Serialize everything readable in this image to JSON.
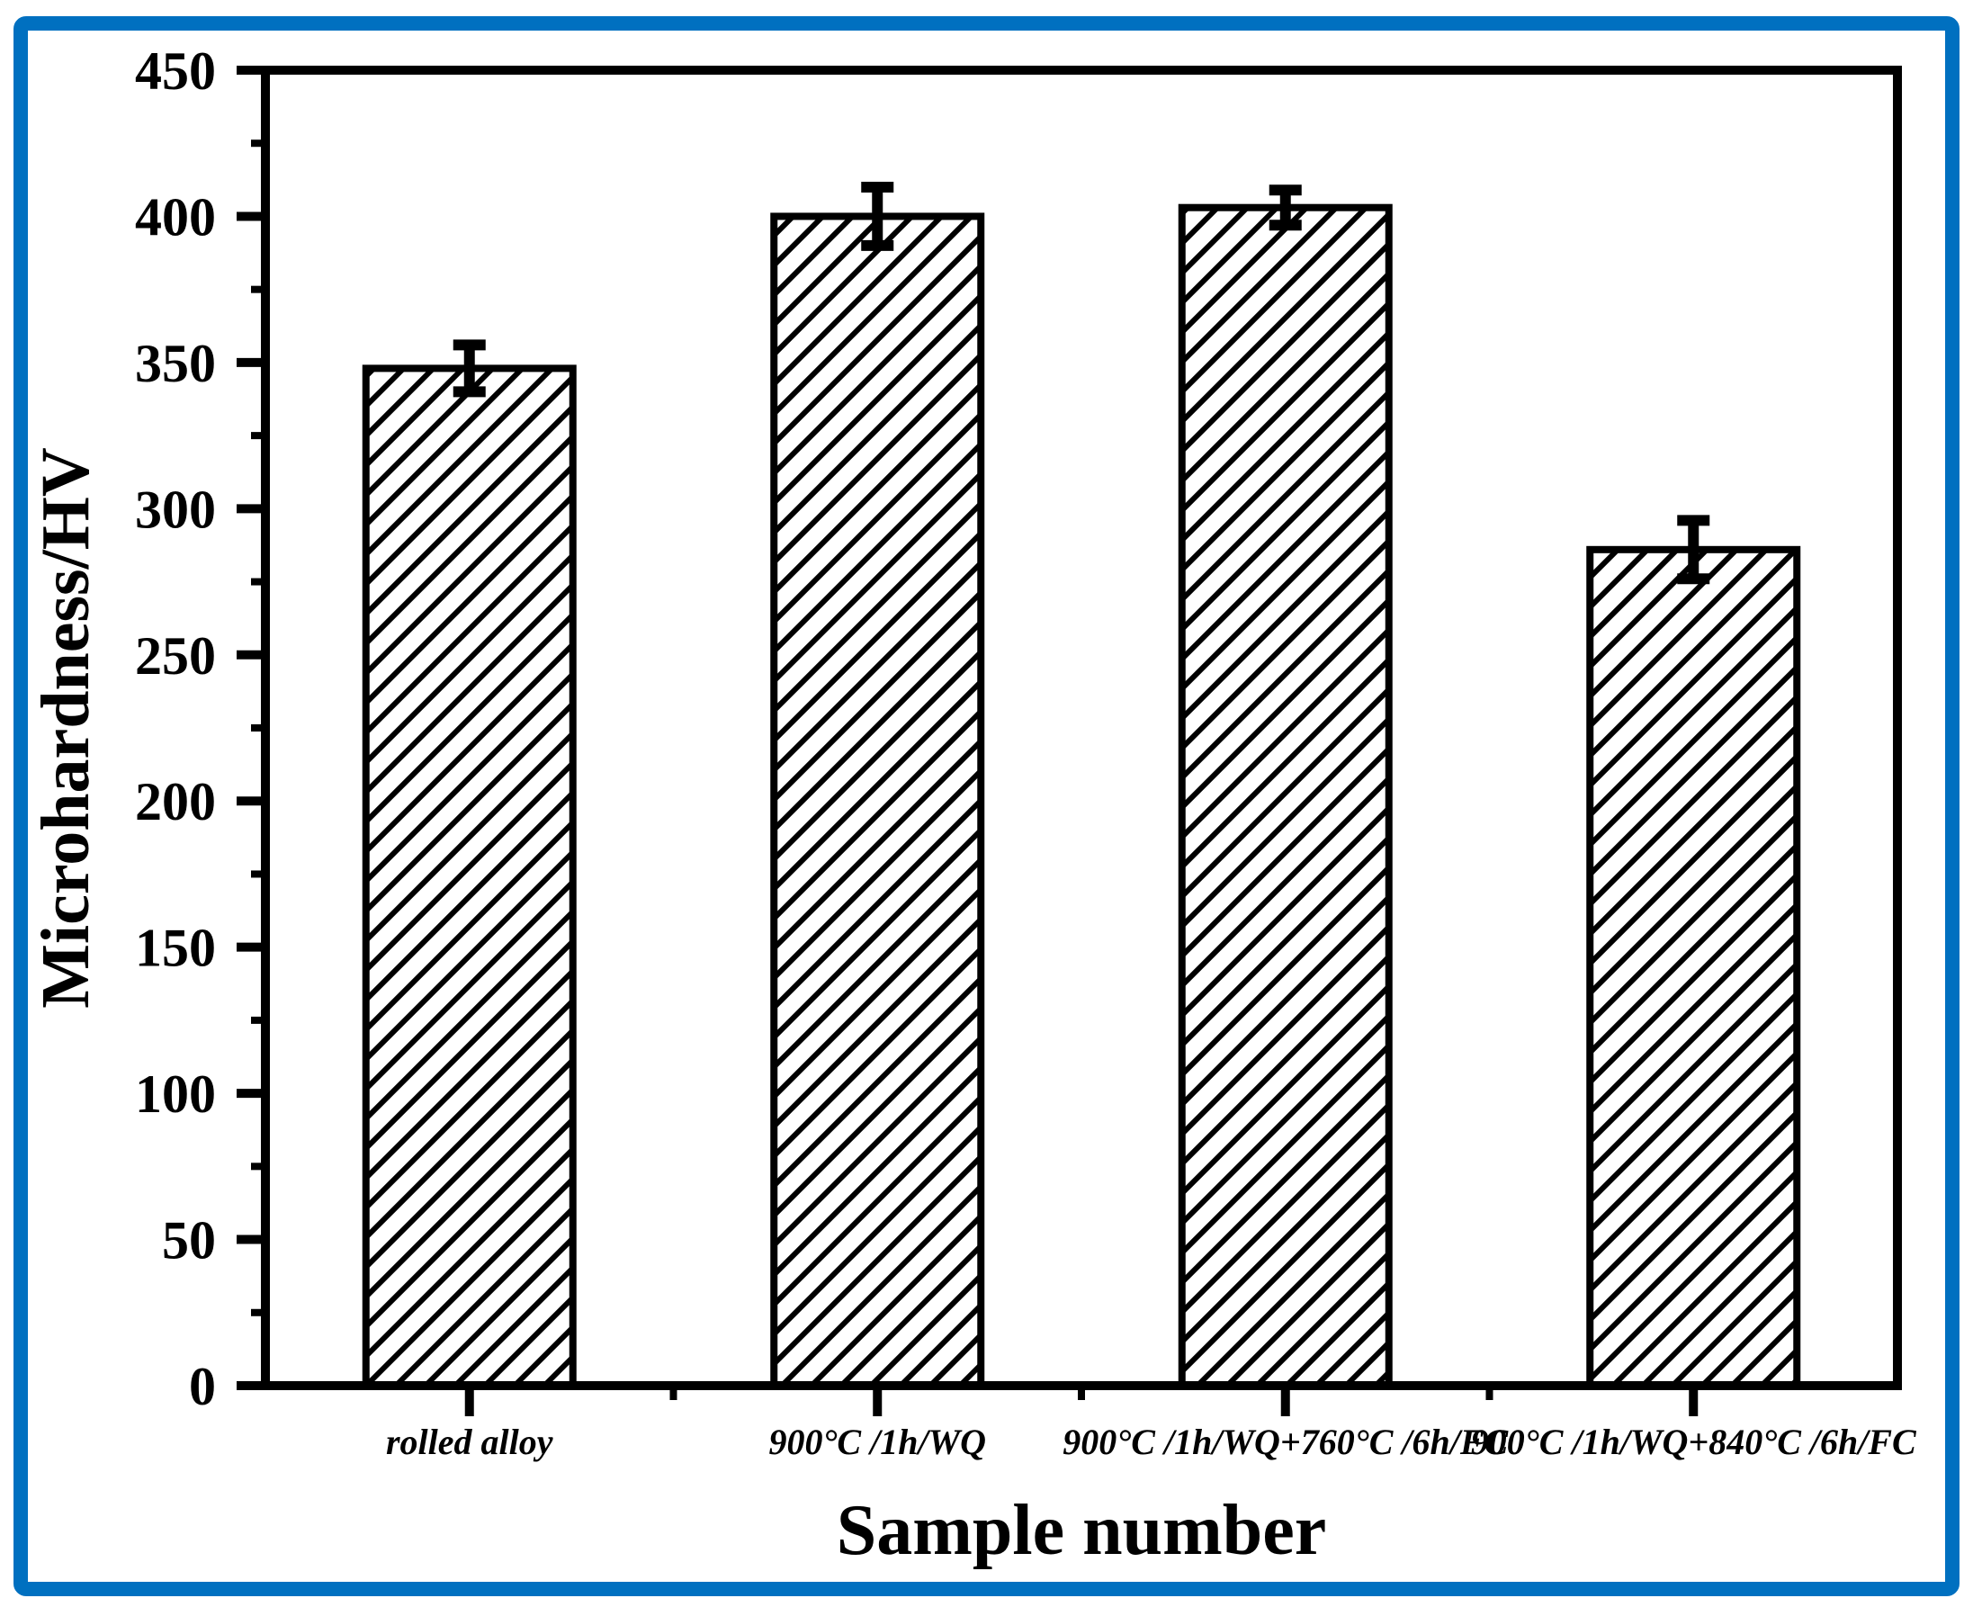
{
  "figure": {
    "border_color": "#0070C0",
    "background_color": "#ffffff",
    "bar_outline_color": "#000000",
    "bar_fill_style": "diagonal-hatch"
  },
  "chart_data": {
    "type": "bar",
    "title": "",
    "xlabel": "Sample number",
    "ylabel": "Microhardness/HV",
    "categories": [
      "rolled alloy",
      "900°C /1h/WQ",
      "900°C /1h/WQ+760°C /6h/FC",
      "900°C /1h/WQ+840°C /6h/FC"
    ],
    "values": [
      348,
      400,
      403,
      286
    ],
    "error_bars": [
      8,
      10,
      6,
      10
    ],
    "ylim": [
      0,
      450
    ],
    "y_major_ticks": [
      0,
      50,
      100,
      150,
      200,
      250,
      300,
      350,
      400,
      450
    ],
    "y_minor_tick_step": 25,
    "grid": false,
    "legend": "none"
  }
}
